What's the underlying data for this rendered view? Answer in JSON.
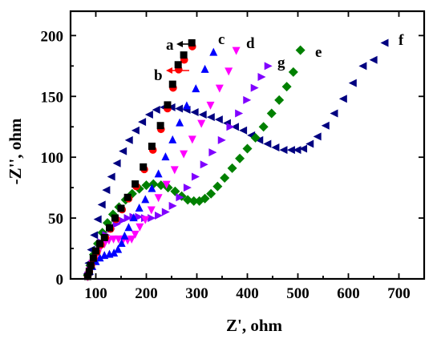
{
  "chart_data": {
    "type": "scatter",
    "xlabel": "Z', ohm",
    "ylabel": "-Z'', ohm",
    "xlim": [
      50,
      750
    ],
    "ylim": [
      0,
      220
    ],
    "xticks": [
      100,
      200,
      300,
      400,
      500,
      600,
      700
    ],
    "yticks": [
      0,
      50,
      100,
      150,
      200
    ],
    "grid": false,
    "series": [
      {
        "name": "a",
        "marker": "square",
        "color": "#000000",
        "x": [
          84,
          87,
          90,
          95,
          100,
          108,
          117,
          127,
          138,
          150,
          163,
          178,
          194,
          211,
          228,
          242,
          252,
          263,
          274,
          290
        ],
        "y": [
          2,
          6,
          11,
          17,
          23,
          29,
          34,
          42,
          50,
          58,
          67,
          78,
          92,
          109,
          126,
          143,
          160,
          176,
          184,
          194
        ]
      },
      {
        "name": "b",
        "marker": "circle",
        "color": "#ff0000",
        "x": [
          84,
          87,
          91,
          96,
          102,
          110,
          119,
          129,
          140,
          152,
          165,
          180,
          196,
          213,
          229,
          242,
          253,
          264,
          275,
          291
        ],
        "y": [
          2,
          6,
          11,
          17,
          22,
          28,
          34,
          41,
          49,
          57,
          66,
          76,
          90,
          106,
          123,
          140,
          157,
          172,
          180,
          191
        ]
      },
      {
        "name": "c",
        "marker": "triangle-up",
        "color": "#0000ff",
        "x": [
          84,
          88,
          93,
          100,
          108,
          117,
          127,
          136,
          144,
          151,
          157,
          165,
          175,
          186,
          198,
          211,
          224,
          238,
          252,
          266,
          280,
          298,
          316,
          333
        ],
        "y": [
          2,
          6,
          10,
          14,
          17,
          19,
          20,
          21,
          24,
          29,
          35,
          42,
          50,
          58,
          65,
          74,
          86,
          100,
          114,
          128,
          142,
          156,
          172,
          186
        ]
      },
      {
        "name": "d",
        "marker": "triangle-down",
        "color": "#ff00ff",
        "x": [
          84,
          88,
          93,
          100,
          108,
          117,
          126,
          135,
          145,
          155,
          163,
          171,
          178,
          187,
          198,
          210,
          224,
          240,
          256,
          274,
          291,
          309,
          327,
          345,
          363,
          378
        ],
        "y": [
          2,
          7,
          13,
          19,
          25,
          29,
          32,
          33,
          33,
          33,
          32,
          33,
          37,
          43,
          49,
          57,
          67,
          78,
          90,
          103,
          115,
          128,
          143,
          157,
          171,
          188
        ]
      },
      {
        "name": "g",
        "marker": "triangle-right",
        "color": "#8000ff",
        "x": [
          84,
          89,
          95,
          102,
          110,
          119,
          129,
          140,
          151,
          162,
          173,
          184,
          196,
          209,
          223,
          237,
          251,
          265,
          280,
          296,
          313,
          330,
          348,
          365,
          382,
          398,
          413,
          427,
          440
        ],
        "y": [
          3,
          9,
          16,
          23,
          30,
          36,
          41,
          45,
          48,
          50,
          51,
          51,
          50,
          50,
          52,
          55,
          60,
          67,
          75,
          84,
          94,
          104,
          114,
          125,
          136,
          147,
          157,
          166,
          175
        ]
      },
      {
        "name": "e",
        "marker": "diamond",
        "color": "#008000",
        "x": [
          84,
          89,
          96,
          104,
          113,
          123,
          134,
          146,
          159,
          172,
          186,
          200,
          214,
          229,
          243,
          257,
          270,
          282,
          294,
          305,
          316,
          328,
          341,
          355,
          370,
          385,
          400,
          416,
          432,
          448,
          463,
          478,
          491,
          505
        ],
        "y": [
          3,
          11,
          20,
          29,
          38,
          46,
          53,
          59,
          65,
          70,
          74,
          77,
          78,
          77,
          75,
          72,
          68,
          65,
          64,
          64,
          66,
          70,
          76,
          83,
          91,
          99,
          107,
          116,
          125,
          136,
          147,
          158,
          170,
          188
        ]
      },
      {
        "name": "f",
        "marker": "triangle-left",
        "color": "#000080",
        "x": [
          84,
          87,
          92,
          98,
          105,
          113,
          122,
          132,
          143,
          155,
          167,
          180,
          193,
          207,
          221,
          236,
          251,
          266,
          281,
          297,
          313,
          329,
          345,
          361,
          377,
          393,
          409,
          425,
          441,
          457,
          473,
          488,
          500,
          512,
          525,
          540,
          556,
          573,
          591,
          610,
          630,
          651,
          673
        ],
        "y": [
          4,
          13,
          24,
          36,
          49,
          61,
          73,
          84,
          95,
          105,
          114,
          122,
          129,
          135,
          139,
          141,
          141,
          140,
          139,
          137,
          135,
          133,
          131,
          128,
          125,
          122,
          118,
          114,
          111,
          108,
          106,
          106,
          106,
          107,
          111,
          117,
          126,
          136,
          148,
          161,
          175,
          180,
          194
        ]
      }
    ]
  }
}
